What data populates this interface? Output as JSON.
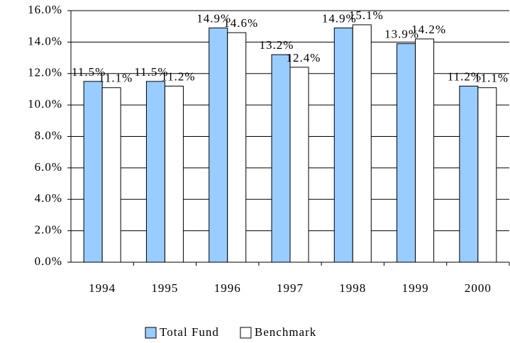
{
  "chart_data": {
    "type": "bar",
    "categories": [
      "1994",
      "1995",
      "1996",
      "1997",
      "1998",
      "1999",
      "2000"
    ],
    "series": [
      {
        "name": "Total Fund",
        "color": "#99ccff",
        "values": [
          11.5,
          11.5,
          14.9,
          13.2,
          14.9,
          13.9,
          11.2
        ],
        "value_labels": [
          "11.5%",
          "11.5%",
          "14.9%",
          "13.2%",
          "14.9%",
          "13.9%",
          "11.2%"
        ]
      },
      {
        "name": "Benchmark",
        "color": "#ffffff",
        "values": [
          11.1,
          11.2,
          14.6,
          12.4,
          15.1,
          14.2,
          11.1
        ],
        "value_labels": [
          "11.1%",
          "11.2%",
          "14.6%",
          "12.4%",
          "15.1%",
          "14.2%",
          "11.1%"
        ]
      }
    ],
    "ylim": [
      0,
      16
    ],
    "yticks": [
      {
        "value": 0,
        "label": "0.0%"
      },
      {
        "value": 2,
        "label": "2.0%"
      },
      {
        "value": 4,
        "label": "4.0%"
      },
      {
        "value": 6,
        "label": "6.0%"
      },
      {
        "value": 8,
        "label": "8.0%"
      },
      {
        "value": 10,
        "label": "10.0%"
      },
      {
        "value": 12,
        "label": "12.0%"
      },
      {
        "value": 14,
        "label": "14.0%"
      },
      {
        "value": 16,
        "label": "16.0%"
      }
    ],
    "grid": true,
    "legend": "bottom"
  }
}
